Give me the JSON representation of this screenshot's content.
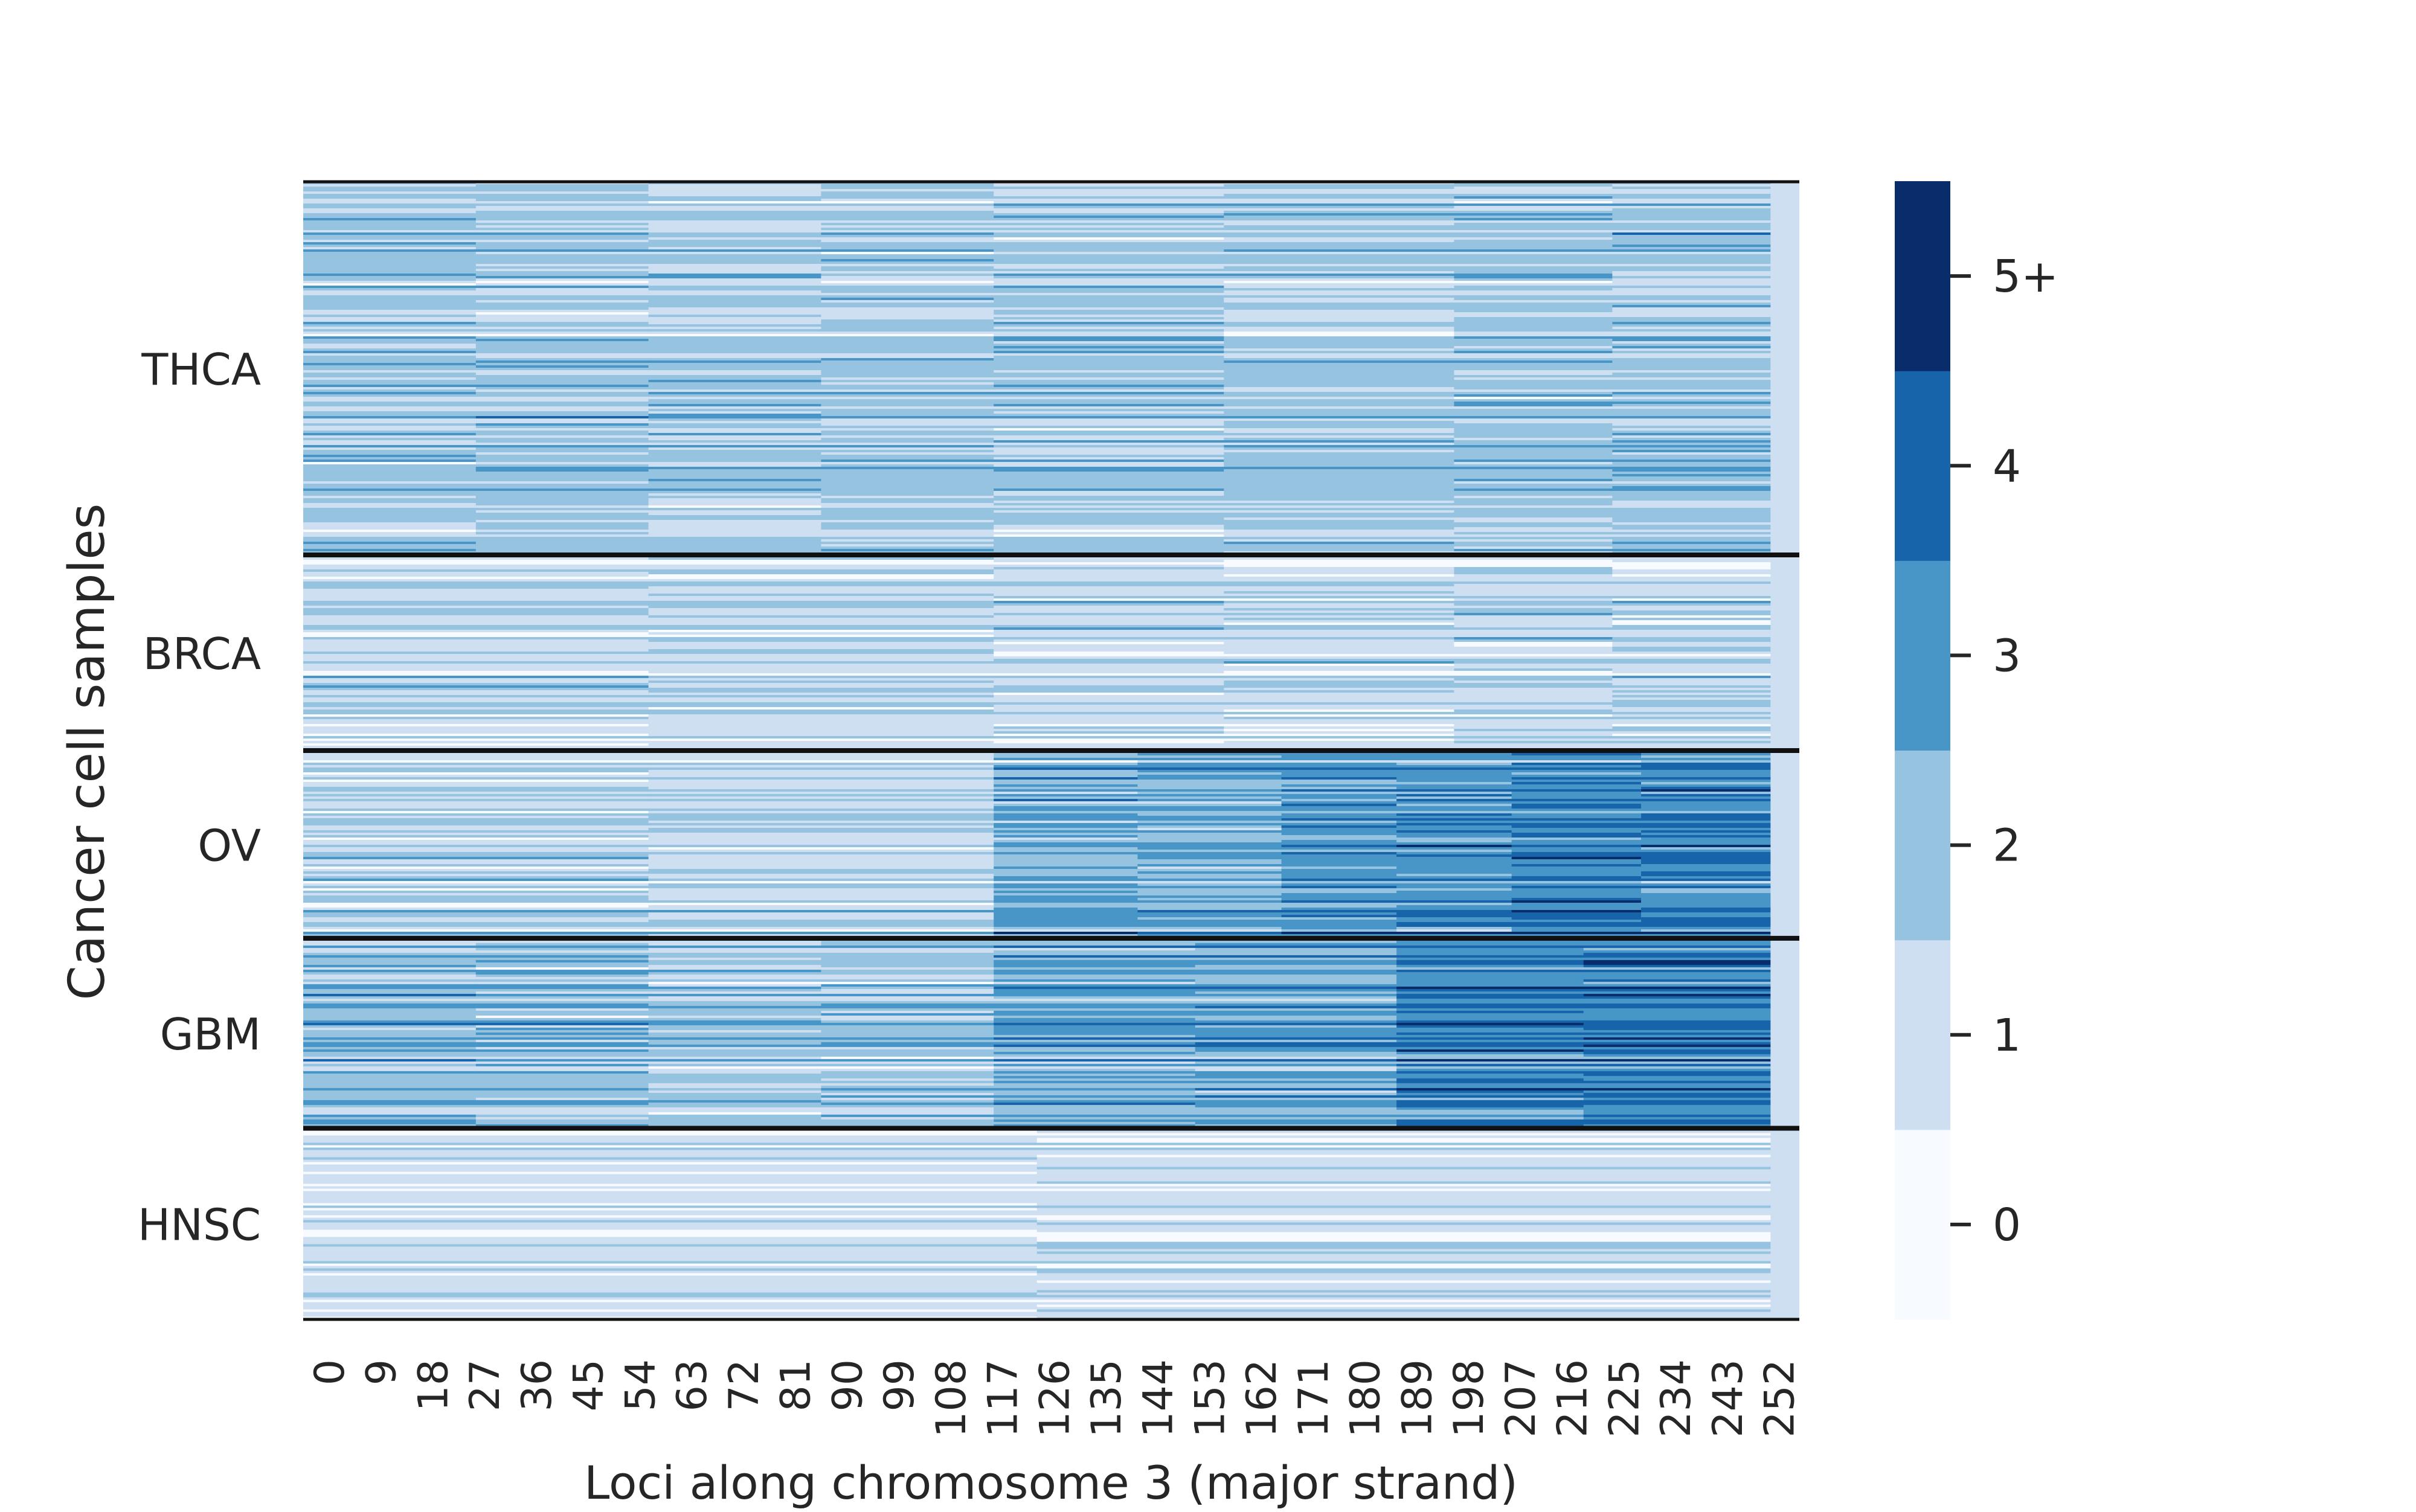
{
  "chart_data": {
    "type": "heatmap",
    "title": "",
    "xlabel": "Loci along chromosome 3 (major strand)",
    "ylabel": "Cancer cell samples",
    "x_tick_labels": [
      "0",
      "9",
      "18",
      "27",
      "36",
      "45",
      "54",
      "63",
      "72",
      "81",
      "90",
      "99",
      "108",
      "117",
      "126",
      "135",
      "144",
      "153",
      "162",
      "171",
      "180",
      "189",
      "198",
      "207",
      "216",
      "225",
      "234",
      "243",
      "252"
    ],
    "x_range": [
      0,
      260
    ],
    "data_loci_range": [
      0,
      255
    ],
    "groups": [
      {
        "name": "THCA",
        "row_fraction": 0.328,
        "mean_by_region": [
          [
            0,
            60,
            1.7
          ],
          [
            60,
            120,
            1.55
          ],
          [
            120,
            200,
            1.55
          ],
          [
            200,
            255,
            1.75
          ]
        ]
      },
      {
        "name": "BRCA",
        "row_fraction": 0.172,
        "mean_by_region": [
          [
            0,
            120,
            1.25
          ],
          [
            120,
            200,
            1.25
          ],
          [
            200,
            255,
            1.35
          ]
        ]
      },
      {
        "name": "OV",
        "row_fraction": 0.165,
        "mean_by_region": [
          [
            0,
            120,
            1.3
          ],
          [
            120,
            170,
            2.4
          ],
          [
            170,
            210,
            2.9
          ],
          [
            210,
            255,
            3.3
          ]
        ]
      },
      {
        "name": "GBM",
        "row_fraction": 0.167,
        "mean_by_region": [
          [
            0,
            60,
            2.0
          ],
          [
            60,
            120,
            1.7
          ],
          [
            120,
            190,
            2.5
          ],
          [
            190,
            255,
            3.4
          ]
        ]
      },
      {
        "name": "HNSC",
        "row_fraction": 0.168,
        "mean_by_region": [
          [
            0,
            255,
            1.0
          ]
        ]
      }
    ],
    "colorbar": {
      "levels": [
        0,
        1,
        2,
        3,
        4,
        5
      ],
      "tick_labels": [
        "0",
        "1",
        "2",
        "3",
        "4",
        "5+"
      ],
      "colors": [
        "#f7fbff",
        "#cddff0",
        "#96c3df",
        "#4896c8",
        "#1764ab",
        "#092d6a"
      ]
    },
    "grid": false,
    "legend": "right colorbar"
  }
}
